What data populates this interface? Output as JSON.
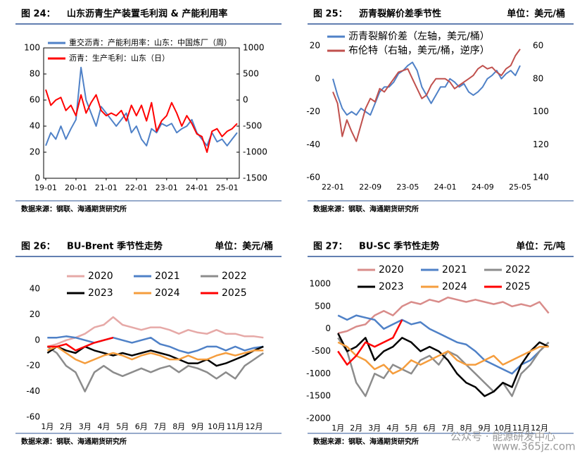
{
  "chart_data": [
    {
      "type": "line",
      "figure_label": "图 24：",
      "title": "山东沥青生产装置毛利润 & 产能利用率",
      "source": "数据来源：钢联、海通期货研究所",
      "x": [
        "19-01",
        "19-03",
        "19-05",
        "19-07",
        "19-09",
        "19-11",
        "20-01",
        "20-03",
        "20-05",
        "20-07",
        "20-09",
        "20-11",
        "21-01",
        "21-03",
        "21-05",
        "21-07",
        "21-09",
        "21-11",
        "22-01",
        "22-03",
        "22-05",
        "22-07",
        "22-09",
        "22-11",
        "23-01",
        "23-03",
        "23-05",
        "23-07",
        "23-09",
        "23-11",
        "24-01",
        "24-03",
        "24-05",
        "24-07",
        "24-09",
        "24-11",
        "25-01",
        "25-03",
        "25-05"
      ],
      "xticks": [
        "19-01",
        "20-01",
        "21-01",
        "22-01",
        "23-01",
        "24-01",
        "25-01"
      ],
      "ylim": [
        0,
        100
      ],
      "yticks": [
        0,
        20,
        40,
        60,
        80,
        100
      ],
      "y2lim": [
        -1500,
        1000
      ],
      "y2ticks": [
        -1500,
        -1000,
        -500,
        0,
        500,
        1000
      ],
      "frame": true,
      "legend": "upper left",
      "series": [
        {
          "name": "重交沥青：产能利用率：山东：中国炼厂（周）",
          "color": "#4f81c7",
          "values": [
            25,
            35,
            30,
            40,
            30,
            38,
            45,
            85,
            60,
            50,
            40,
            55,
            50,
            45,
            40,
            45,
            50,
            35,
            40,
            30,
            25,
            38,
            35,
            42,
            40,
            42,
            35,
            38,
            40,
            45,
            35,
            30,
            25,
            35,
            28,
            30,
            25,
            30,
            35
          ]
        },
        {
          "name": "沥青：生产毛利：山东（日）",
          "color": "#ff0000",
          "axis": "y2",
          "values": [
            200,
            -100,
            0,
            50,
            -200,
            -100,
            -300,
            100,
            -250,
            -50,
            100,
            -200,
            -300,
            -250,
            -300,
            -200,
            -400,
            -100,
            -300,
            -100,
            -400,
            -50,
            -600,
            -400,
            -300,
            -50,
            -250,
            -500,
            -300,
            -450,
            -650,
            -700,
            -1000,
            -600,
            -550,
            -700,
            -600,
            -550,
            -450
          ]
        }
      ]
    },
    {
      "type": "line",
      "figure_label": "图 25：",
      "title": "沥青裂解价差季节性",
      "unit": "单位：美元/桶",
      "source": "数据来源：钢联、海通期货研究所",
      "x": [
        "22-01",
        "22-02",
        "22-03",
        "22-04",
        "22-05",
        "22-06",
        "22-07",
        "22-08",
        "22-09",
        "22-10",
        "22-11",
        "22-12",
        "23-01",
        "23-02",
        "23-03",
        "23-04",
        "23-05",
        "23-06",
        "23-07",
        "23-08",
        "23-09",
        "23-10",
        "23-11",
        "23-12",
        "24-01",
        "24-02",
        "24-03",
        "24-04",
        "24-05",
        "24-06",
        "24-07",
        "24-08",
        "24-09",
        "24-10",
        "24-11",
        "24-12",
        "25-01",
        "25-02",
        "25-03",
        "25-04",
        "25-05"
      ],
      "xticks": [
        "22-01",
        "22-09",
        "23-05",
        "24-01",
        "24-09",
        "25-05"
      ],
      "ylim": [
        -60,
        20
      ],
      "yticks": [
        -60,
        -40,
        -20,
        0,
        20
      ],
      "y2lim": [
        140,
        60
      ],
      "y2ticks": [
        60,
        80,
        100,
        120,
        140
      ],
      "y2_inverted": true,
      "legend": "upper left",
      "series": [
        {
          "name": "沥青裂解价差（左轴，美元/桶）",
          "color": "#4f81c7",
          "values": [
            0,
            -10,
            -18,
            -22,
            -20,
            -22,
            -18,
            -20,
            -22,
            -15,
            -8,
            -5,
            -5,
            -2,
            3,
            5,
            8,
            10,
            5,
            -5,
            -10,
            -15,
            -10,
            -5,
            -5,
            0,
            -2,
            -5,
            -3,
            -8,
            -10,
            -8,
            -5,
            0,
            2,
            5,
            0,
            3,
            5,
            2,
            8
          ]
        },
        {
          "name": "布伦特（右轴，美元/桶，逆序）",
          "color": "#c0504d",
          "axis": "y2",
          "values": [
            88,
            95,
            115,
            105,
            112,
            118,
            108,
            98,
            92,
            94,
            86,
            88,
            84,
            80,
            76,
            75,
            74,
            80,
            86,
            92,
            90,
            84,
            80,
            80,
            80,
            82,
            86,
            84,
            82,
            80,
            78,
            74,
            72,
            74,
            73,
            76,
            78,
            74,
            72,
            66,
            62
          ]
        }
      ]
    },
    {
      "type": "line",
      "figure_label": "图 26：",
      "title": "BU-Brent 季节性走势",
      "unit": "单位：美元/桶",
      "source": "数据来源：钢联、海通期货研究所",
      "x": [
        1,
        1.5,
        2,
        2.5,
        3,
        3.5,
        4,
        4.5,
        5,
        5.5,
        6,
        6.5,
        7,
        7.5,
        8,
        8.5,
        9,
        9.5,
        10,
        10.5,
        11,
        11.5,
        12,
        12.5
      ],
      "xlim": [
        0.8,
        12.9
      ],
      "xticks": [
        {
          "value": 1,
          "label": "1月"
        },
        {
          "value": 2,
          "label": "2月"
        },
        {
          "value": 3,
          "label": "3月"
        },
        {
          "value": 4,
          "label": "4月"
        },
        {
          "value": 5,
          "label": "5月"
        },
        {
          "value": 6,
          "label": "6月"
        },
        {
          "value": 7,
          "label": "7月"
        },
        {
          "value": 8,
          "label": "8月"
        },
        {
          "value": 9,
          "label": "9月"
        },
        {
          "value": 10,
          "label": "10月"
        },
        {
          "value": 11,
          "label": "11月"
        },
        {
          "value": 12,
          "label": "12月"
        }
      ],
      "ylim": [
        -60,
        40
      ],
      "yticks": [
        -60,
        -40,
        -20,
        0,
        20,
        40
      ],
      "legend": "upper center",
      "series": [
        {
          "name": "2020",
          "color": "#e6a9a7",
          "values": [
            -5,
            -3,
            0,
            2,
            5,
            10,
            12,
            18,
            12,
            10,
            8,
            10,
            10,
            8,
            5,
            8,
            6,
            5,
            8,
            5,
            5,
            3,
            3,
            2
          ]
        },
        {
          "name": "2021",
          "color": "#4f81c7",
          "values": [
            2,
            2,
            3,
            2,
            0,
            -2,
            0,
            2,
            0,
            -2,
            0,
            2,
            -3,
            -5,
            -8,
            -10,
            -8,
            -5,
            -5,
            -8,
            -5,
            -8,
            -6,
            -5
          ]
        },
        {
          "name": "2022",
          "color": "#8c8c8c",
          "values": [
            -5,
            -10,
            -20,
            -25,
            -40,
            -25,
            -20,
            -25,
            -28,
            -25,
            -22,
            -25,
            -22,
            -20,
            -25,
            -20,
            -22,
            -25,
            -30,
            -25,
            -30,
            -20,
            -15,
            -10
          ]
        },
        {
          "name": "2023",
          "color": "#000000",
          "values": [
            -10,
            -5,
            -8,
            -10,
            -5,
            -8,
            -10,
            -12,
            -10,
            -12,
            -10,
            -8,
            -10,
            -12,
            -15,
            -18,
            -18,
            -15,
            -20,
            -18,
            -15,
            -12,
            -8,
            -5
          ]
        },
        {
          "name": "2024",
          "color": "#f59d3d",
          "values": [
            -8,
            -5,
            -10,
            -15,
            -18,
            -15,
            -12,
            -10,
            -12,
            -15,
            -12,
            -10,
            -12,
            -15,
            -15,
            -12,
            -15,
            -15,
            -12,
            -10,
            -12,
            -10,
            -8,
            -8
          ]
        },
        {
          "name": "2025",
          "color": "#ff0000",
          "values": [
            -5,
            -5,
            -3,
            -8,
            -5,
            -2,
            0,
            2,
            null,
            null,
            null,
            null,
            null,
            null,
            null,
            null,
            null,
            null,
            null,
            null,
            null,
            null,
            null,
            null
          ]
        }
      ]
    },
    {
      "type": "line",
      "figure_label": "图 27：",
      "title": "BU-SC 季节性走势",
      "unit": "单位：元/吨",
      "source": "数据来源：钢联、海通期货研究所",
      "x": [
        1,
        1.5,
        2,
        2.5,
        3,
        3.5,
        4,
        4.5,
        5,
        5.5,
        6,
        6.5,
        7,
        7.5,
        8,
        8.5,
        9,
        9.5,
        10,
        10.5,
        11,
        11.5,
        12,
        12.5
      ],
      "xlim": [
        0.8,
        12.9
      ],
      "xticks": [
        {
          "value": 1,
          "label": "1月"
        },
        {
          "value": 2,
          "label": "2月"
        },
        {
          "value": 3,
          "label": "3月"
        },
        {
          "value": 4,
          "label": "4月"
        },
        {
          "value": 5,
          "label": "5月"
        },
        {
          "value": 6,
          "label": "6月"
        },
        {
          "value": 7,
          "label": "7月"
        },
        {
          "value": 8,
          "label": "8月"
        },
        {
          "value": 9,
          "label": "9月"
        },
        {
          "value": 10,
          "label": "10月"
        },
        {
          "value": 11,
          "label": "11月"
        },
        {
          "value": 12,
          "label": "12月"
        }
      ],
      "ylim": [
        -2000,
        1000
      ],
      "yticks": [
        -2000,
        -1500,
        -1000,
        -500,
        0,
        500,
        1000
      ],
      "legend": "upper center",
      "series": [
        {
          "name": "2020",
          "color": "#d98c8a",
          "values": [
            -100,
            -50,
            50,
            100,
            300,
            400,
            300,
            500,
            600,
            550,
            650,
            600,
            700,
            650,
            600,
            650,
            600,
            550,
            600,
            500,
            550,
            500,
            600,
            350
          ]
        },
        {
          "name": "2021",
          "color": "#4f81c7",
          "values": [
            300,
            200,
            300,
            250,
            200,
            0,
            100,
            200,
            100,
            150,
            0,
            -100,
            -200,
            -300,
            -350,
            -500,
            -700,
            -800,
            -900,
            -1000,
            -800,
            -700,
            -500,
            -300
          ]
        },
        {
          "name": "2022",
          "color": "#8c8c8c",
          "values": [
            -200,
            -500,
            -1200,
            -1500,
            -1000,
            -1100,
            -800,
            -900,
            -1000,
            -700,
            -600,
            -800,
            -500,
            -600,
            -800,
            -1000,
            -1200,
            -1400,
            -1200,
            -1500,
            -1000,
            -800,
            -500,
            -300
          ]
        },
        {
          "name": "2023",
          "color": "#000000",
          "values": [
            -100,
            -500,
            -400,
            -200,
            -700,
            -500,
            -400,
            -200,
            -300,
            -500,
            -400,
            -500,
            -700,
            -1000,
            -1200,
            -1300,
            -1500,
            -1400,
            -1200,
            -1300,
            -800,
            -500,
            -300,
            -400
          ]
        },
        {
          "name": "2024",
          "color": "#f59d3d",
          "values": [
            -300,
            -400,
            -600,
            -700,
            -900,
            -800,
            -1000,
            -900,
            -700,
            -800,
            -700,
            -600,
            -500,
            -700,
            -800,
            -800,
            -700,
            -600,
            -800,
            -700,
            -600,
            -500,
            -400,
            -400
          ]
        },
        {
          "name": "2025",
          "color": "#ff0000",
          "values": [
            -500,
            -800,
            -600,
            -300,
            -400,
            -300,
            -200,
            200,
            null,
            null,
            null,
            null,
            null,
            null,
            null,
            null,
            null,
            null,
            null,
            null,
            null,
            null,
            null,
            null
          ]
        }
      ]
    }
  ],
  "watermark": [
    "公众号 · 能源研发中心",
    "www.365jz.com"
  ]
}
